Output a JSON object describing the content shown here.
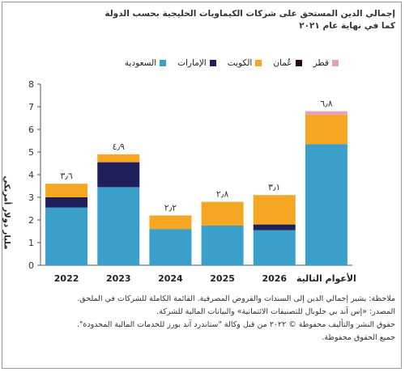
{
  "title_lines": [
    "إجمالي الدين المستحق على شركات الكيماويات الخليجية بحسب الدولة",
    "كما في نهاية عام ٢٠٢١"
  ],
  "chart_data": {
    "type": "bar",
    "stacked": true,
    "categories": [
      "2022",
      "2023",
      "2024",
      "2025",
      "2026",
      "الأعوام التالية"
    ],
    "series": [
      {
        "name": "السعودية",
        "color": "#3a9fc9",
        "values": [
          2.55,
          3.45,
          1.6,
          1.75,
          1.55,
          5.35
        ]
      },
      {
        "name": "الإمارات",
        "color": "#1f1f5c",
        "values": [
          0.45,
          1.1,
          0,
          0,
          0.25,
          0
        ]
      },
      {
        "name": "الكويت",
        "color": "#f5a623",
        "values": [
          0.6,
          0.35,
          0.6,
          1.05,
          1.3,
          1.3
        ]
      },
      {
        "name": "عُمان",
        "color": "#2a0a1a",
        "values": [
          0,
          0,
          0,
          0,
          0,
          0
        ]
      },
      {
        "name": "قطر",
        "color": "#e8a0b8",
        "values": [
          0,
          0,
          0,
          0,
          0,
          0.15
        ]
      }
    ],
    "totals": [
      "٣٫٦",
      "٤٫٩",
      "٢٫٢",
      "٢٫٨",
      "٣٫١",
      "٦٫٨"
    ],
    "ylabel": "مليار دولار أمريكي",
    "ylim": [
      0,
      8
    ],
    "yticks": [
      0,
      1,
      2,
      3,
      4,
      5,
      6,
      7,
      8
    ],
    "legend_position": "top"
  },
  "notes": [
    "ملاحظة: يشير إجمالي الدين إلى السندات والقروض المصرفية. القائمة الكاملة للشركات في الملحق.",
    "المصدر: «إس آند بي جلوبال للتصنيفات الائتمانية» والبيانات المالية للشركة.",
    "حقوق النشر والتأليف محفوظة © ٢٠٢٢ من قبل وكالة \"ستاندرد آند بورز للخدمات المالية المحدودة\".",
    "جميع الحقوق محفوظة."
  ]
}
